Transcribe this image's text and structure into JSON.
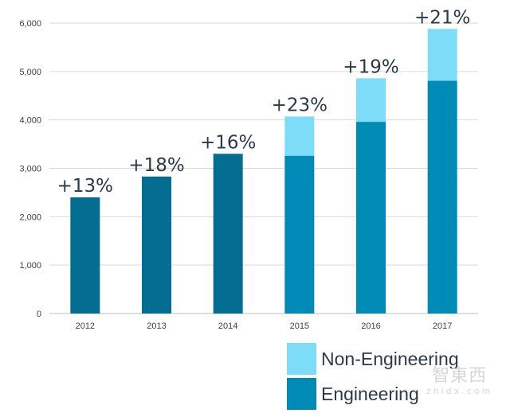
{
  "chart_data": {
    "type": "bar",
    "stacked": true,
    "categories": [
      "2012",
      "2013",
      "2014",
      "2015",
      "2016",
      "2017"
    ],
    "series": [
      {
        "name": "Engineering",
        "values": [
          2400,
          2830,
          3300,
          3260,
          3960,
          4810
        ]
      },
      {
        "name": "Non-Engineering",
        "values": [
          0,
          0,
          0,
          810,
          900,
          1070
        ]
      }
    ],
    "totals": [
      2400,
      2830,
      3300,
      4070,
      4860,
      5880
    ],
    "growth_labels": [
      "+13%",
      "+18%",
      "+16%",
      "+23%",
      "+19%",
      "+21%"
    ],
    "yticks": [
      "0",
      "1,000",
      "2,000",
      "3,000",
      "4,000",
      "5,000",
      "6,000"
    ],
    "ylim": [
      0,
      6000
    ],
    "grid": true,
    "legend_position": "bottom-right",
    "colors": {
      "early_bar": "#036e91",
      "engineering": "#008bb6",
      "non_engineering": "#7ddcf7",
      "grid": "#d9d9d9"
    }
  },
  "legend": {
    "non_engineering": "Non-Engineering",
    "engineering": "Engineering"
  },
  "watermark": {
    "text": "智東西",
    "sub": "zhidx.com"
  }
}
